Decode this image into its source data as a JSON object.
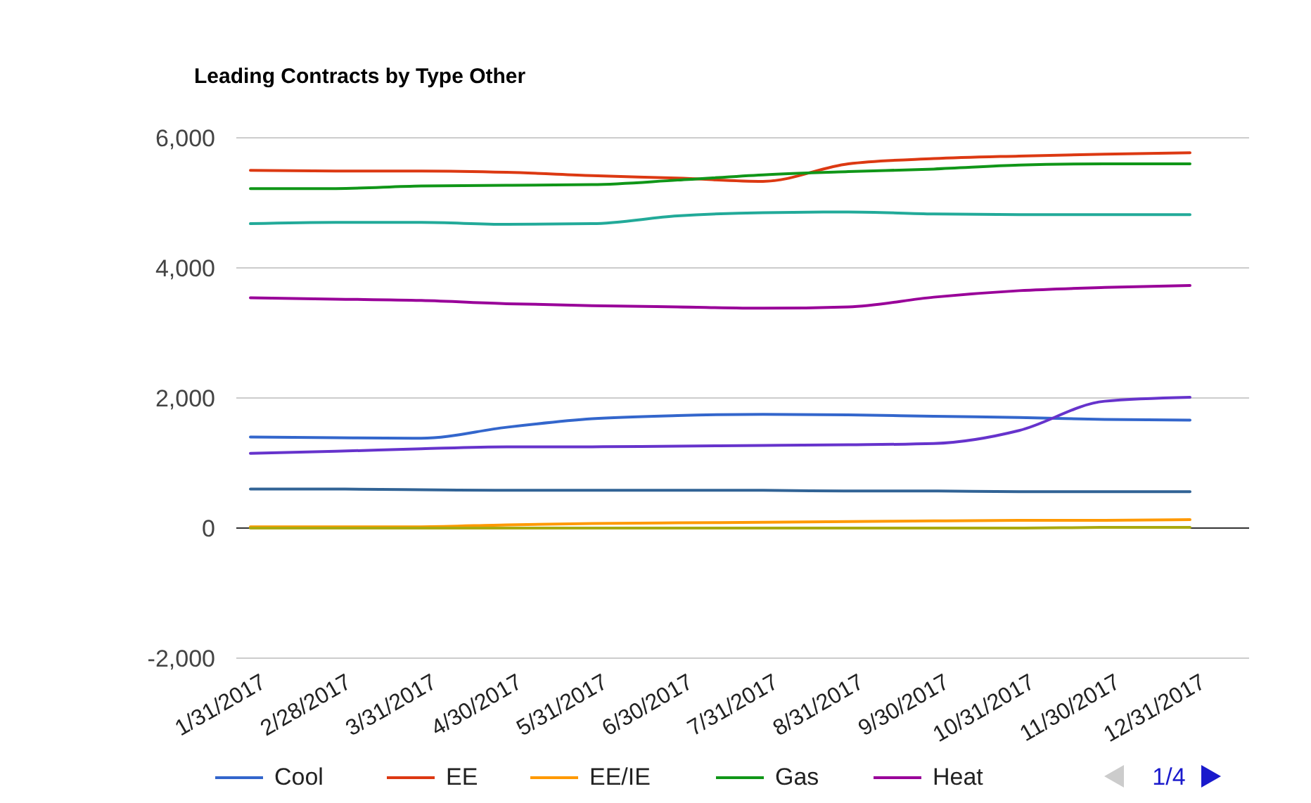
{
  "chart_data": {
    "type": "line",
    "title": "Leading Contracts by Type Other",
    "categories": [
      "1/31/2017",
      "2/28/2017",
      "3/31/2017",
      "4/30/2017",
      "5/31/2017",
      "6/30/2017",
      "7/31/2017",
      "8/31/2017",
      "9/30/2017",
      "10/31/2017",
      "11/30/2017",
      "12/31/2017"
    ],
    "series": [
      {
        "name": "Cool",
        "color": "#3366cc",
        "values": [
          1400,
          1390,
          1380,
          1550,
          1680,
          1730,
          1750,
          1740,
          1720,
          1700,
          1670,
          1660
        ]
      },
      {
        "name": "EE",
        "color": "#dc3912",
        "values": [
          5500,
          5490,
          5490,
          5470,
          5420,
          5380,
          5330,
          5600,
          5680,
          5720,
          5750,
          5770
        ]
      },
      {
        "name": "EE/IE",
        "color": "#ff9900",
        "values": [
          20,
          20,
          20,
          50,
          70,
          80,
          90,
          100,
          110,
          120,
          120,
          130
        ]
      },
      {
        "name": "Gas",
        "color": "#109618",
        "values": [
          5220,
          5220,
          5260,
          5270,
          5280,
          5350,
          5430,
          5480,
          5520,
          5580,
          5600,
          5600
        ]
      },
      {
        "name": "Heat",
        "color": "#990099",
        "values": [
          3540,
          3520,
          3500,
          3450,
          3420,
          3400,
          3380,
          3400,
          3550,
          3650,
          3700,
          3730
        ]
      },
      {
        "color": "#22aa99",
        "values": [
          4680,
          4700,
          4700,
          4670,
          4680,
          4800,
          4850,
          4860,
          4830,
          4820,
          4820,
          4820
        ]
      },
      {
        "color": "#6633cc",
        "values": [
          1150,
          1180,
          1220,
          1250,
          1250,
          1260,
          1270,
          1280,
          1300,
          1500,
          1950,
          2010
        ]
      },
      {
        "color": "#316395",
        "values": [
          600,
          600,
          590,
          580,
          580,
          580,
          580,
          570,
          570,
          560,
          560,
          560
        ]
      },
      {
        "color": "#aaaa11",
        "values": [
          0,
          0,
          0,
          0,
          0,
          0,
          0,
          0,
          0,
          0,
          10,
          10
        ]
      }
    ],
    "ylim": [
      -2000,
      6000
    ],
    "yticks": [
      {
        "value": -2000,
        "label": "-2,000"
      },
      0,
      {
        "value": 2000,
        "label": "2,000"
      },
      {
        "value": 4000,
        "label": "4,000"
      },
      {
        "value": 6000,
        "label": "6,000"
      }
    ],
    "grid": "y",
    "legend": "bottom",
    "marker": "none",
    "line_style": "solid",
    "annotations": [
      "1/4"
    ]
  }
}
